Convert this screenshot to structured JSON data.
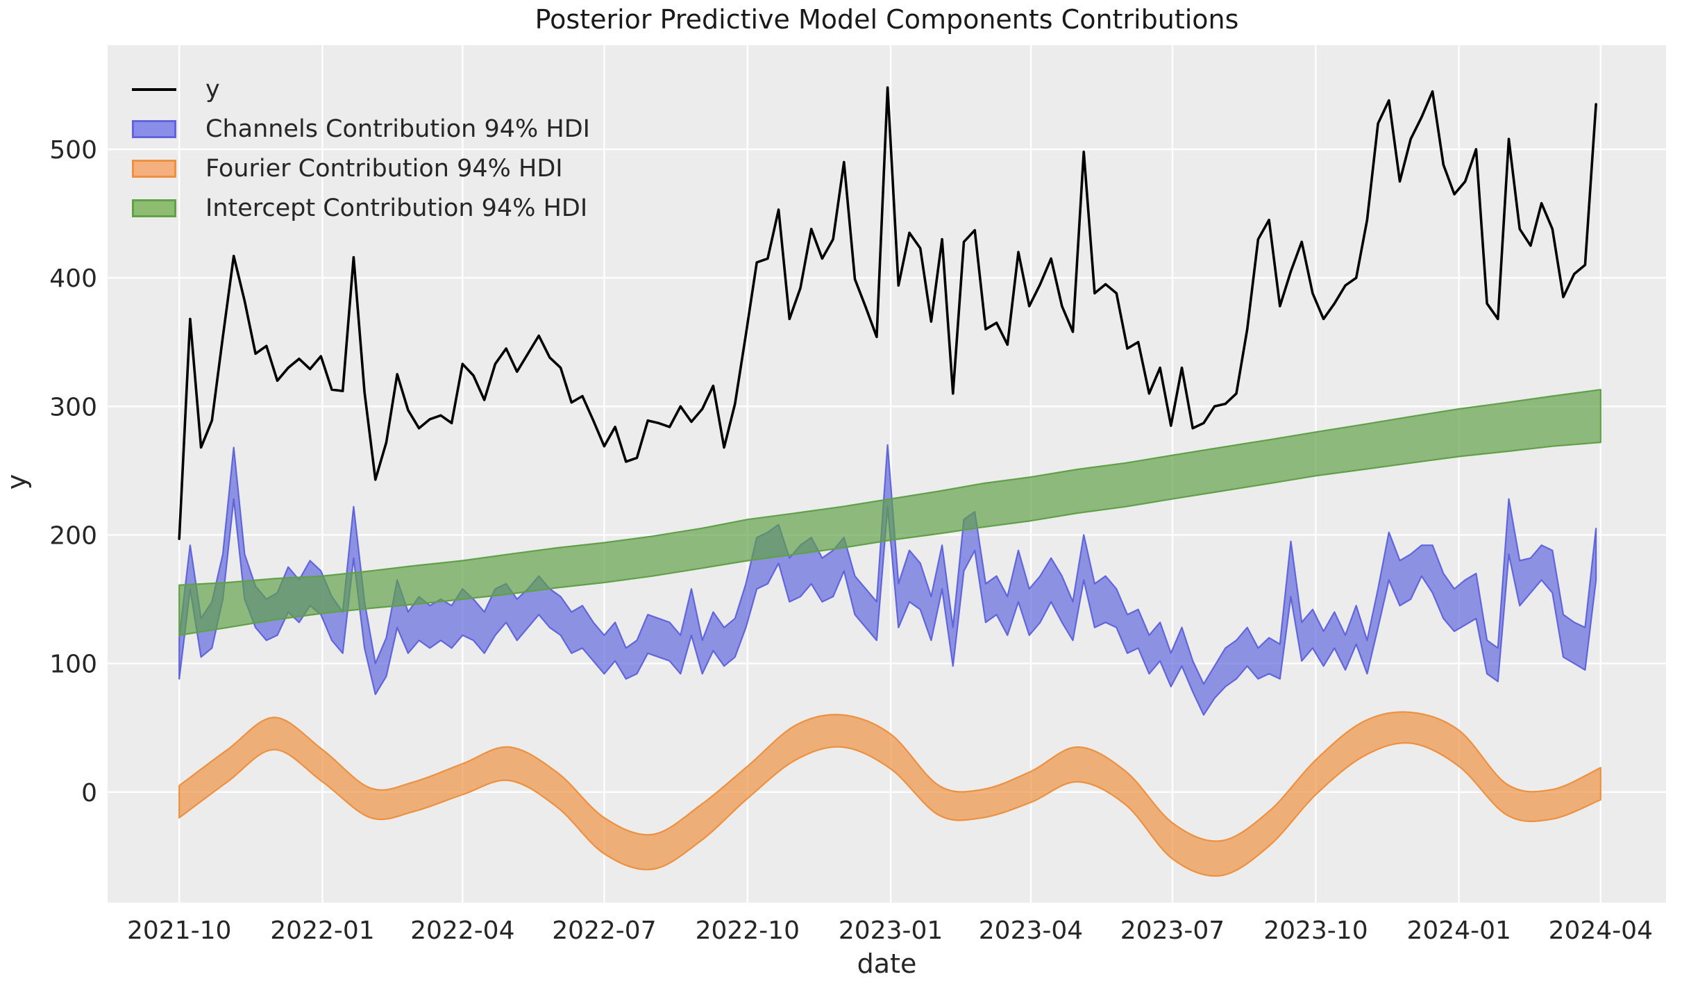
{
  "figure": {
    "title": "Posterior Predictive Model Components Contributions",
    "xlabel": "date",
    "ylabel": "y"
  },
  "legend": {
    "items": [
      {
        "label": "y",
        "swatch": "line",
        "color": "#000000"
      },
      {
        "label": "Channels Contribution 94% HDI",
        "swatch": "patch",
        "fill": "#8a8ee9",
        "edge": "#6065dc"
      },
      {
        "label": "Fourier Contribution 94% HDI",
        "swatch": "patch",
        "fill": "#f4b17f",
        "edge": "#ed9140"
      },
      {
        "label": "Intercept Contribution 94% HDI",
        "swatch": "patch",
        "fill": "#8ebd72",
        "edge": "#60a048"
      }
    ]
  },
  "chart_data": {
    "type": "line",
    "title": "Posterior Predictive Model Components Contributions",
    "xlabel": "date",
    "ylabel": "y",
    "grid": true,
    "background": "#ececec",
    "grid_color": "#ffffff",
    "legend_position": "upper left",
    "x_ticks": [
      "2021-10",
      "2022-01",
      "2022-04",
      "2022-07",
      "2022-10",
      "2023-01",
      "2023-04",
      "2023-07",
      "2023-10",
      "2024-01",
      "2024-04"
    ],
    "y_ticks": [
      0,
      100,
      200,
      300,
      400,
      500
    ],
    "xlim": [
      "2021-08-16",
      "2024-05-13"
    ],
    "ylim": [
      -86,
      581
    ],
    "series": [
      {
        "name": "y",
        "type": "line",
        "color": "#000000",
        "start": "2021-10-01",
        "step_days": 7,
        "values": [
          197,
          368,
          268,
          289,
          354,
          417,
          382,
          341,
          347,
          320,
          330,
          337,
          329,
          339,
          313,
          312,
          416,
          311,
          243,
          272,
          325,
          297,
          283,
          290,
          293,
          287,
          333,
          324,
          305,
          333,
          345,
          327,
          341,
          355,
          338,
          330,
          303,
          308,
          289,
          269,
          284,
          257,
          260,
          289,
          287,
          284,
          300,
          288,
          298,
          316,
          268,
          302,
          356,
          412,
          415,
          453,
          368,
          392,
          438,
          415,
          430,
          490,
          399,
          377,
          354,
          548,
          394,
          435,
          423,
          366,
          430,
          310,
          428,
          437,
          360,
          365,
          348,
          420,
          378,
          395,
          415,
          378,
          358,
          498,
          388,
          395,
          388,
          345,
          350,
          310,
          330,
          285,
          330,
          283,
          287,
          300,
          302,
          310,
          360,
          430,
          445,
          378,
          405,
          428,
          388,
          368,
          380,
          394,
          400,
          445,
          520,
          538,
          475,
          508,
          525,
          545,
          488,
          465,
          475,
          500,
          380,
          368,
          508,
          438,
          425,
          458,
          438,
          385,
          403,
          410,
          535
        ]
      },
      {
        "name": "Channels Contribution 94% HDI",
        "type": "band",
        "edge": "#6065dc",
        "start": "2021-10-01",
        "step_days": 7,
        "lower": [
          88,
          158,
          105,
          112,
          150,
          228,
          150,
          128,
          118,
          122,
          140,
          132,
          145,
          138,
          118,
          108,
          182,
          112,
          76,
          90,
          128,
          108,
          118,
          112,
          118,
          112,
          122,
          118,
          108,
          122,
          132,
          118,
          128,
          138,
          128,
          122,
          108,
          112,
          102,
          92,
          102,
          88,
          92,
          108,
          105,
          102,
          92,
          122,
          92,
          110,
          98,
          105,
          128,
          158,
          162,
          178,
          148,
          152,
          162,
          148,
          152,
          172,
          138,
          128,
          118,
          222,
          128,
          148,
          142,
          118,
          158,
          98,
          172,
          188,
          132,
          138,
          122,
          148,
          122,
          132,
          148,
          132,
          118,
          165,
          128,
          132,
          128,
          108,
          112,
          92,
          102,
          82,
          98,
          78,
          60,
          73,
          82,
          88,
          98,
          88,
          92,
          88,
          152,
          102,
          112,
          98,
          112,
          95,
          115,
          92,
          128,
          165,
          145,
          150,
          168,
          155,
          135,
          125,
          130,
          135,
          92,
          86,
          185,
          145,
          155,
          165,
          155,
          105,
          100,
          95,
          165
        ],
        "upper": [
          120,
          192,
          135,
          148,
          185,
          268,
          185,
          160,
          150,
          155,
          175,
          165,
          180,
          172,
          152,
          140,
          222,
          148,
          100,
          120,
          165,
          140,
          152,
          145,
          150,
          145,
          158,
          150,
          140,
          158,
          162,
          150,
          158,
          168,
          158,
          152,
          140,
          145,
          132,
          122,
          132,
          112,
          118,
          138,
          135,
          132,
          122,
          158,
          118,
          140,
          128,
          135,
          162,
          198,
          202,
          208,
          182,
          192,
          198,
          182,
          188,
          198,
          168,
          158,
          148,
          270,
          162,
          188,
          178,
          152,
          192,
          128,
          212,
          218,
          162,
          168,
          152,
          188,
          158,
          168,
          182,
          168,
          148,
          200,
          162,
          168,
          158,
          138,
          142,
          122,
          132,
          108,
          128,
          102,
          84,
          98,
          112,
          118,
          128,
          112,
          120,
          115,
          195,
          132,
          142,
          125,
          140,
          122,
          145,
          118,
          158,
          202,
          180,
          185,
          192,
          192,
          170,
          158,
          165,
          170,
          118,
          112,
          228,
          180,
          182,
          192,
          188,
          138,
          132,
          128,
          205
        ]
      },
      {
        "name": "Fourier Contribution 94% HDI",
        "type": "band",
        "smooth": true,
        "edge": "#ed9140",
        "months": [
          "2021-10",
          "2021-11",
          "2021-12",
          "2022-01",
          "2022-02",
          "2022-03",
          "2022-04",
          "2022-05",
          "2022-06",
          "2022-07",
          "2022-08",
          "2022-09",
          "2022-10",
          "2022-11",
          "2022-12",
          "2023-01",
          "2023-02",
          "2023-03",
          "2023-04",
          "2023-05",
          "2023-06",
          "2023-07",
          "2023-08",
          "2023-09",
          "2023-10",
          "2023-11",
          "2023-12",
          "2024-01",
          "2024-02",
          "2024-03",
          "2024-04"
        ],
        "lower": [
          -20,
          8,
          33,
          8,
          -20,
          -15,
          -2,
          9,
          -12,
          -48,
          -60,
          -38,
          -5,
          25,
          35,
          18,
          -18,
          -20,
          -8,
          8,
          -10,
          -52,
          -65,
          -42,
          -2,
          28,
          38,
          20,
          -18,
          -21,
          -6
        ],
        "upper": [
          5,
          33,
          58,
          33,
          3,
          8,
          22,
          35,
          15,
          -20,
          -33,
          -10,
          20,
          52,
          60,
          45,
          5,
          2,
          16,
          35,
          16,
          -24,
          -38,
          -15,
          25,
          55,
          62,
          48,
          6,
          2,
          19
        ]
      },
      {
        "name": "Intercept Contribution 94% HDI",
        "type": "band",
        "smooth": false,
        "edge": "#60a048",
        "months": [
          "2021-10",
          "2021-11",
          "2021-12",
          "2022-01",
          "2022-02",
          "2022-03",
          "2022-04",
          "2022-05",
          "2022-06",
          "2022-07",
          "2022-08",
          "2022-09",
          "2022-10",
          "2022-11",
          "2022-12",
          "2023-01",
          "2023-02",
          "2023-03",
          "2023-04",
          "2023-05",
          "2023-06",
          "2023-07",
          "2023-08",
          "2023-09",
          "2023-10",
          "2023-11",
          "2023-12",
          "2024-01",
          "2024-02",
          "2024-03",
          "2024-04"
        ],
        "lower": [
          122,
          128,
          134,
          139,
          143,
          146,
          150,
          154,
          159,
          163,
          168,
          174,
          180,
          185,
          190,
          196,
          201,
          206,
          211,
          217,
          222,
          228,
          234,
          240,
          246,
          251,
          256,
          261,
          265,
          269,
          272
        ],
        "upper": [
          161,
          163,
          166,
          168,
          172,
          176,
          180,
          185,
          190,
          194,
          199,
          205,
          212,
          217,
          222,
          228,
          234,
          240,
          245,
          251,
          256,
          262,
          268,
          274,
          280,
          286,
          292,
          298,
          303,
          308,
          313
        ]
      }
    ]
  }
}
